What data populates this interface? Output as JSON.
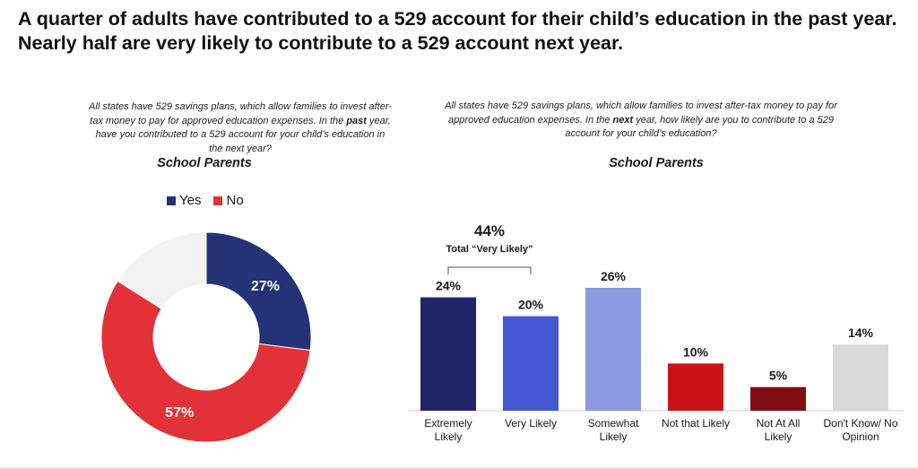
{
  "headline": "A quarter of adults have contributed to a 529 account for their child’s education in the past year. Nearly half are very likely to contribute to a 529 account next year.",
  "left_panel": {
    "question_pre": "All states have 529 savings plans, which allow families to invest after-tax money to pay for approved education expenses. In the ",
    "question_emph": "past",
    "question_post": " year, have you contributed to a 529 account for your child’s education in the next year?",
    "subtitle": "School Parents"
  },
  "right_panel": {
    "question_pre": "All states have 529 savings plans, which allow families to invest after-tax money to pay for approved education expenses. In the ",
    "question_emph": "next",
    "question_post": " year, how likely are you to contribute to a 529 account for your child’s education?",
    "subtitle": "School Parents",
    "bracket_value": "44%",
    "bracket_label": "Total “Very Likely”"
  },
  "chart_data": [
    {
      "type": "pie",
      "variant": "donut",
      "legend": [
        "Yes",
        "No"
      ],
      "slices": [
        {
          "label": "Yes",
          "value": 27,
          "display": "27%",
          "color": "#233375"
        },
        {
          "label": "No",
          "value": 57,
          "display": "57%",
          "color": "#e23237"
        },
        {
          "label": "",
          "value": 16,
          "display": "",
          "color": "#f2f2f2"
        }
      ]
    },
    {
      "type": "bar",
      "categories": [
        "Extremely Likely",
        "Very Likely",
        "Somewhat Likely",
        "Not that Likely",
        "Not At All Likely",
        "Don't Know/ No Opinion"
      ],
      "values": [
        24,
        20,
        26,
        10,
        5,
        14
      ],
      "labels": [
        "24%",
        "20%",
        "26%",
        "10%",
        "5%",
        "14%"
      ],
      "colors": [
        "#1f2566",
        "#4557d1",
        "#8d99e0",
        "#cc1417",
        "#820d13",
        "#d9d9d9"
      ],
      "ylim": [
        0,
        26
      ]
    }
  ]
}
